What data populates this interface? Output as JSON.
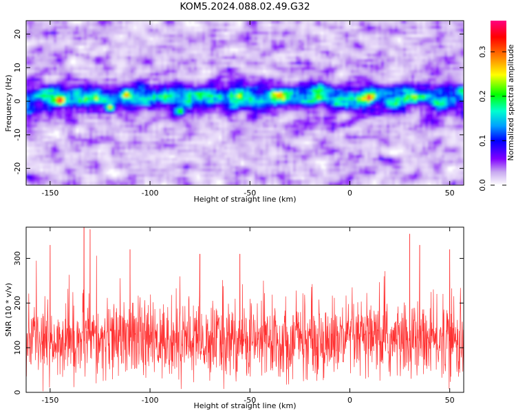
{
  "chart_data": [
    {
      "type": "heatmap",
      "title": "KOM5.2024.088.02.49.G32",
      "xlabel": "Height of straight line (km)",
      "ylabel": "Frequency (Hz)",
      "xlim": [
        -162,
        57
      ],
      "ylim": [
        -25,
        24
      ],
      "xticks": [
        -150,
        -100,
        -50,
        0,
        50
      ],
      "yticks": [
        -20,
        -10,
        0,
        10,
        20
      ],
      "colorbar": {
        "label": "Normalized spectral amplitude",
        "range": [
          0.0,
          0.37
        ],
        "ticks": [
          0.0,
          0.1,
          0.2,
          0.3
        ],
        "tick_labels": [
          "0.0",
          "0.1",
          "0.2",
          "0.3"
        ],
        "colormap": [
          "#ffffff",
          "#c8a8f0",
          "#8000ff",
          "#0000ff",
          "#00a0ff",
          "#00ffd0",
          "#00ff00",
          "#ffff00",
          "#ff8000",
          "#ff0000",
          "#ff0080"
        ]
      },
      "band": {
        "center_hz": 1,
        "half_width_hz": 3.5,
        "peak_amplitude": 0.3
      },
      "hot_spots": [
        {
          "x": -145,
          "y": 0,
          "value": 0.28
        },
        {
          "x": -120,
          "y": -2,
          "value": 0.26
        },
        {
          "x": -112,
          "y": 2,
          "value": 0.22
        },
        {
          "x": -85,
          "y": -3,
          "value": 0.2
        },
        {
          "x": 10,
          "y": 1,
          "value": 0.2
        }
      ]
    },
    {
      "type": "line",
      "xlabel": "Height of straight line (km)",
      "ylabel": "SNR (10 * v/v)",
      "xlim": [
        -162,
        57
      ],
      "ylim": [
        0,
        370
      ],
      "xticks": [
        -150,
        -100,
        -50,
        0,
        50
      ],
      "yticks": [
        0,
        100,
        200,
        300
      ],
      "line_color": "#ff3030",
      "series": [
        {
          "summary": {
            "typical_low": 40,
            "typical_high": 200,
            "mean": 115
          },
          "peaks": [
            {
              "x": -133,
              "y": 370
            },
            {
              "x": -130,
              "y": 365
            },
            {
              "x": 30,
              "y": 355
            },
            {
              "x": -150,
              "y": 330
            },
            {
              "x": -110,
              "y": 320
            },
            {
              "x": 35,
              "y": 330
            },
            {
              "x": -75,
              "y": 310
            },
            {
              "x": -55,
              "y": 310
            },
            {
              "x": 50,
              "y": 320
            }
          ]
        }
      ]
    }
  ]
}
